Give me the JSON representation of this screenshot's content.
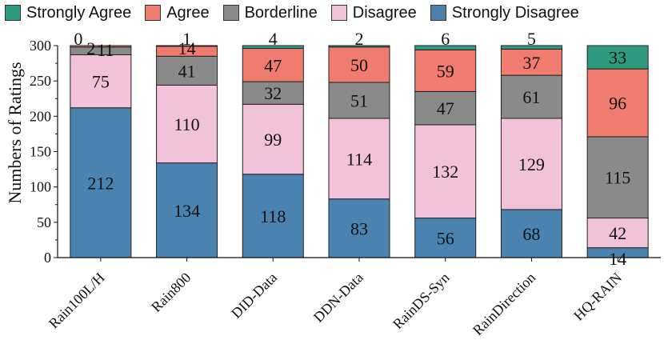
{
  "chart_data": {
    "type": "bar",
    "stacked": true,
    "title": "",
    "xlabel": "",
    "ylabel": "Numbers of Ratings",
    "ylim": [
      0,
      300
    ],
    "yticks": [
      0,
      50,
      100,
      150,
      200,
      250,
      300
    ],
    "legend_position": "top",
    "categories": [
      "Rain100L/H",
      "Rain800",
      "DID-Data",
      "DDN-Data",
      "RainDS-Syn",
      "RainDirection",
      "HQ-RAIN"
    ],
    "series": [
      {
        "name": "Strongly Disagree",
        "color": "#4a82b0",
        "values": [
          212,
          134,
          118,
          83,
          56,
          68,
          14
        ]
      },
      {
        "name": "Disagree",
        "color": "#f2c1da",
        "values": [
          75,
          110,
          99,
          114,
          132,
          129,
          42
        ]
      },
      {
        "name": "Borderline",
        "color": "#8a8a8a",
        "values": [
          11,
          41,
          32,
          51,
          47,
          61,
          115
        ]
      },
      {
        "name": "Agree",
        "color": "#f07b6f",
        "values": [
          2,
          14,
          47,
          50,
          59,
          37,
          96
        ]
      },
      {
        "name": "Strongly Agree",
        "color": "#2f9a80",
        "values": [
          0,
          1,
          4,
          2,
          6,
          5,
          33
        ]
      }
    ],
    "legend_order": [
      "Strongly Agree",
      "Agree",
      "Borderline",
      "Disagree",
      "Strongly Disagree"
    ]
  }
}
